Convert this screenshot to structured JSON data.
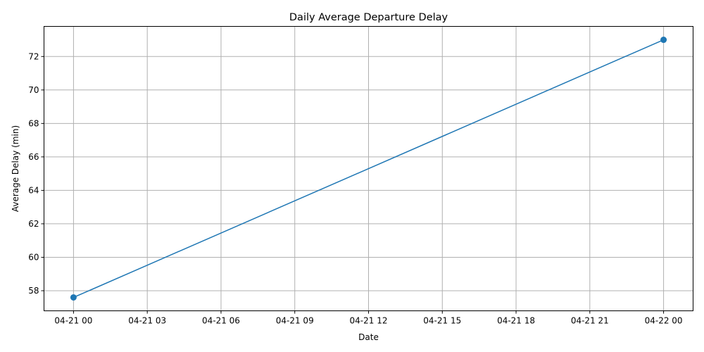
{
  "chart_data": {
    "type": "line",
    "title": "Daily Average Departure Delay",
    "xlabel": "Date",
    "ylabel": "Average Delay (min)",
    "x_ticks": [
      "04-21 00",
      "04-21 03",
      "04-21 06",
      "04-21 09",
      "04-21 12",
      "04-21 15",
      "04-21 18",
      "04-21 21",
      "04-22 00"
    ],
    "y_ticks": [
      "58",
      "60",
      "62",
      "64",
      "66",
      "68",
      "70",
      "72"
    ],
    "xlim": [
      "04-20 22:48",
      "04-22 01:12"
    ],
    "ylim": [
      56.8,
      73.8
    ],
    "grid": true,
    "series": [
      {
        "x": [
          "04-21 00",
          "04-22 00"
        ],
        "values": [
          57.6,
          73.0
        ],
        "color": "#1f77b4",
        "marker": "circle"
      }
    ]
  }
}
